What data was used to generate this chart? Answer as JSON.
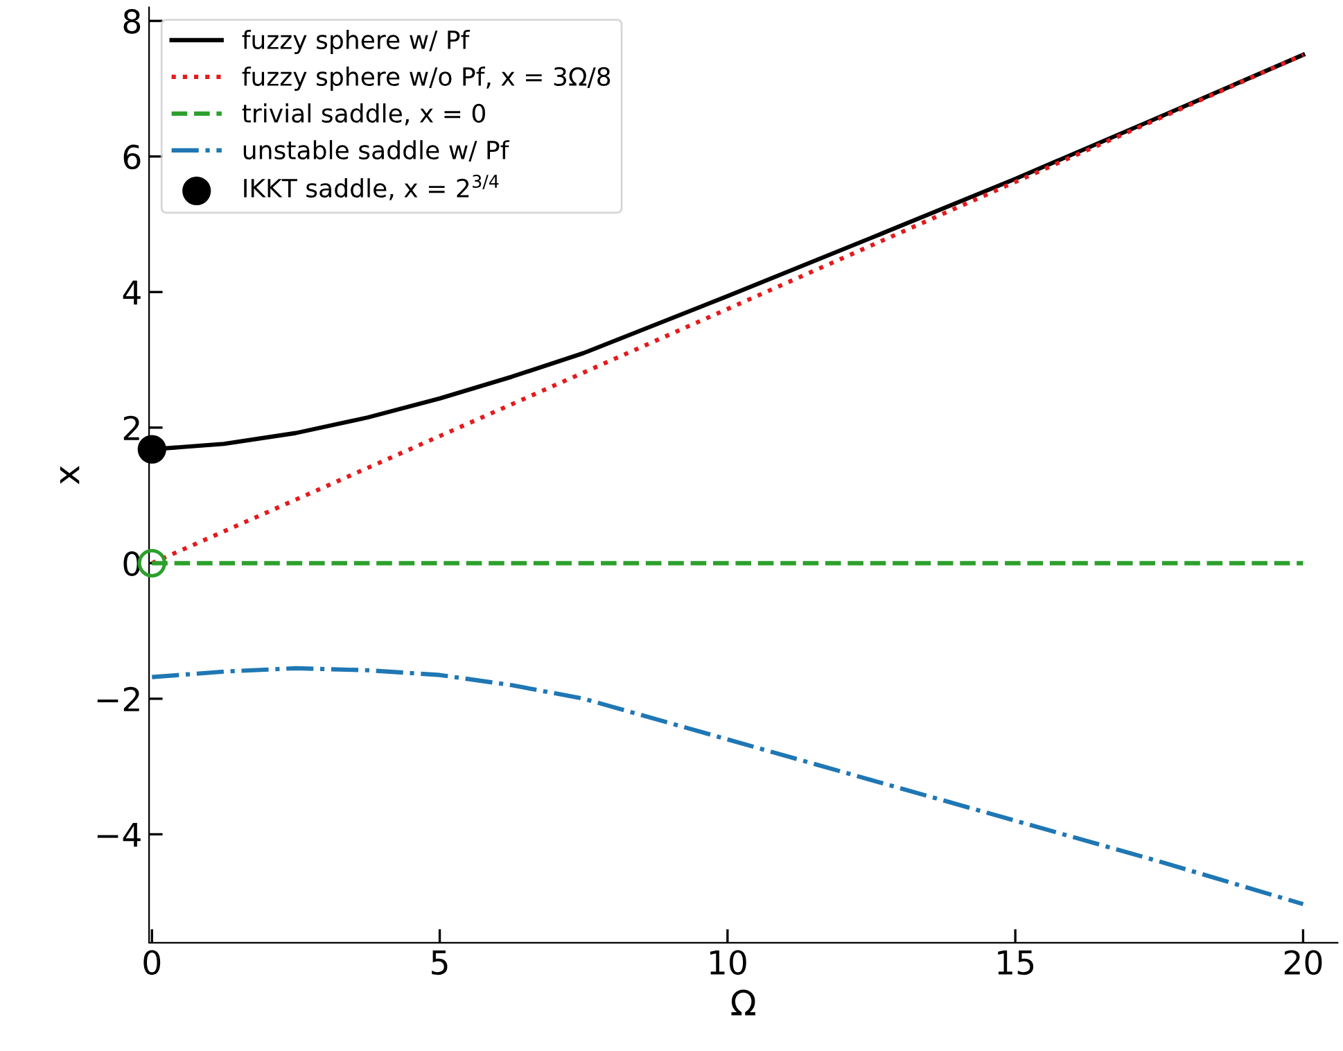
{
  "chart_data": {
    "type": "line",
    "xlabel": "Ω",
    "ylabel": "x",
    "legend": "top left",
    "grid": false,
    "xlim": [
      -0.05,
      20.6
    ],
    "ylim": [
      -5.6,
      8.2
    ],
    "xticks": [
      0,
      5,
      10,
      15,
      20
    ],
    "yticks": [
      {
        "value": -4,
        "label": "−4"
      },
      {
        "value": -2,
        "label": "−2"
      },
      0,
      2,
      4,
      6,
      8
    ],
    "series": [
      {
        "name": "fuzzy sphere w/ Pf",
        "color": "#000000",
        "line_style": "solid",
        "x": [
          0,
          1.25,
          2.5,
          3.75,
          5,
          6.25,
          7.5,
          10,
          12.5,
          15,
          17.5,
          20
        ],
        "values": [
          1.68,
          1.76,
          1.92,
          2.15,
          2.43,
          2.75,
          3.1,
          3.94,
          4.8,
          5.67,
          6.58,
          7.5
        ]
      },
      {
        "name": "fuzzy sphere w/o Pf, x = 3Ω/8",
        "type": "line",
        "color": "#e41a1c",
        "line_style": "dotted",
        "x": [
          0,
          20
        ],
        "values": [
          0,
          7.5
        ]
      },
      {
        "name": "trivial saddle, x = 0",
        "type": "line",
        "color": "#2ca02c",
        "line_style": "dashed",
        "x": [
          0,
          20
        ],
        "values": [
          0,
          0
        ]
      },
      {
        "name": "unstable saddle w/ Pf",
        "type": "line",
        "color": "#1f77b4",
        "line_style": "dashdot",
        "x": [
          0,
          1.25,
          2.5,
          3.75,
          5,
          6.25,
          7.5,
          10,
          12.5,
          15,
          17.5,
          20
        ],
        "values": [
          -1.68,
          -1.6,
          -1.55,
          -1.58,
          -1.65,
          -1.8,
          -2.0,
          -2.6,
          -3.2,
          -3.8,
          -4.4,
          -5.03
        ]
      },
      {
        "name": "IKKT saddle, x = 2$^{3/4}$",
        "type": "scatter",
        "marker": "circle",
        "color": "#000000",
        "x": [
          0
        ],
        "values": [
          1.68
        ]
      },
      {
        "type": "scatter",
        "marker": "circle",
        "color": "#2ca02c",
        "x": [
          0
        ],
        "values": [
          0
        ]
      }
    ]
  }
}
